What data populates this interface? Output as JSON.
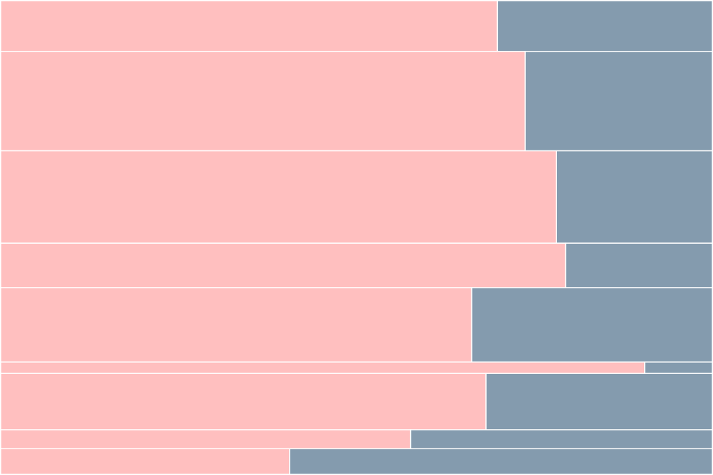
{
  "chart_data": {
    "type": "bar",
    "stacked_normalized": true,
    "orientation": "horizontal",
    "title": "",
    "xlabel": "",
    "ylabel": "",
    "grid": false,
    "legend": "none",
    "colors": [
      "#ffbfbf",
      "#849bae"
    ],
    "rows": [
      {
        "weight": 0.107,
        "values": [
          0.698,
          0.302
        ]
      },
      {
        "weight": 0.21,
        "values": [
          0.737,
          0.263
        ]
      },
      {
        "weight": 0.195,
        "values": [
          0.781,
          0.219
        ]
      },
      {
        "weight": 0.094,
        "values": [
          0.794,
          0.206
        ]
      },
      {
        "weight": 0.157,
        "values": [
          0.662,
          0.338
        ]
      },
      {
        "weight": 0.024,
        "values": [
          0.905,
          0.095
        ]
      },
      {
        "weight": 0.119,
        "values": [
          0.682,
          0.318
        ]
      },
      {
        "weight": 0.04,
        "values": [
          0.576,
          0.424
        ]
      },
      {
        "weight": 0.054,
        "values": [
          0.406,
          0.594
        ]
      }
    ]
  }
}
